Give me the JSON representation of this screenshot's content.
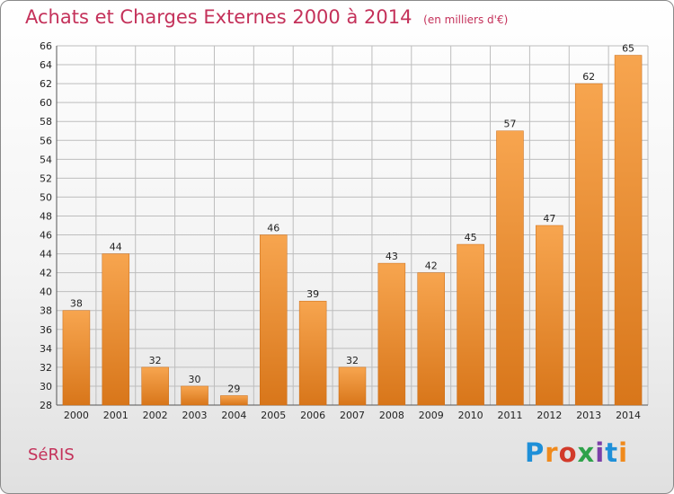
{
  "header": {
    "title": "Achats et Charges Externes 2000 à 2014",
    "subtitle": "(en milliers d'€)"
  },
  "footer": {
    "location": "SéRIS",
    "logo_text": "Proxiti"
  },
  "colors": {
    "bar_light": "#f7a54f",
    "bar_dark": "#d8761a",
    "grid": "#bdbdbd",
    "title": "#c4315a"
  },
  "chart_data": {
    "type": "bar",
    "title": "Achats et Charges Externes 2000 à 2014",
    "subtitle": "(en milliers d'€)",
    "categories": [
      "2000",
      "2001",
      "2002",
      "2003",
      "2004",
      "2005",
      "2006",
      "2007",
      "2008",
      "2009",
      "2010",
      "2011",
      "2012",
      "2013",
      "2014"
    ],
    "values": [
      38,
      44,
      32,
      30,
      29,
      46,
      39,
      32,
      43,
      42,
      45,
      57,
      47,
      62,
      65
    ],
    "ylim": [
      28,
      66
    ],
    "ystep": 2,
    "grid": true,
    "data_labels": true
  }
}
